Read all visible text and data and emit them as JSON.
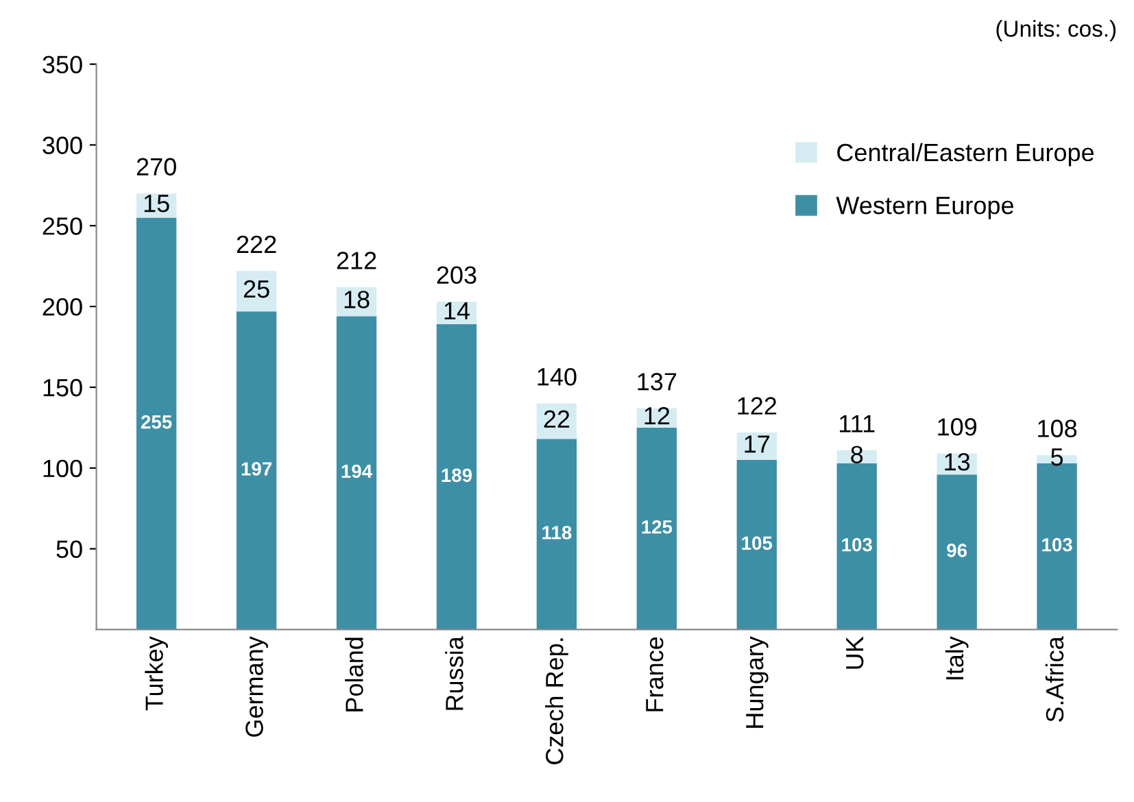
{
  "chart_data": {
    "type": "bar",
    "stacked": true,
    "categories": [
      "Turkey",
      "Germany",
      "Poland",
      "Russia",
      "Czech Rep.",
      "France",
      "Hungary",
      "UK",
      "Italy",
      "S.Africa"
    ],
    "series": [
      {
        "name": "Western Europe",
        "color": "#3d8fa6",
        "values": [
          255,
          197,
          194,
          189,
          118,
          125,
          105,
          103,
          96,
          103
        ]
      },
      {
        "name": "Central/Eastern Europe",
        "color": "#d6ecf3",
        "values": [
          15,
          25,
          18,
          14,
          22,
          12,
          17,
          8,
          13,
          5
        ]
      }
    ],
    "totals": [
      "270",
      "222",
      "212",
      "203",
      "140",
      "137",
      "122",
      "111",
      "109",
      "108"
    ],
    "data_labels": true,
    "ylim": [
      0,
      350
    ],
    "yticks": [
      50,
      100,
      150,
      200,
      250,
      300,
      350
    ],
    "grid": false,
    "legend": "top right",
    "annotations": [
      "(Units: cos.)"
    ]
  }
}
